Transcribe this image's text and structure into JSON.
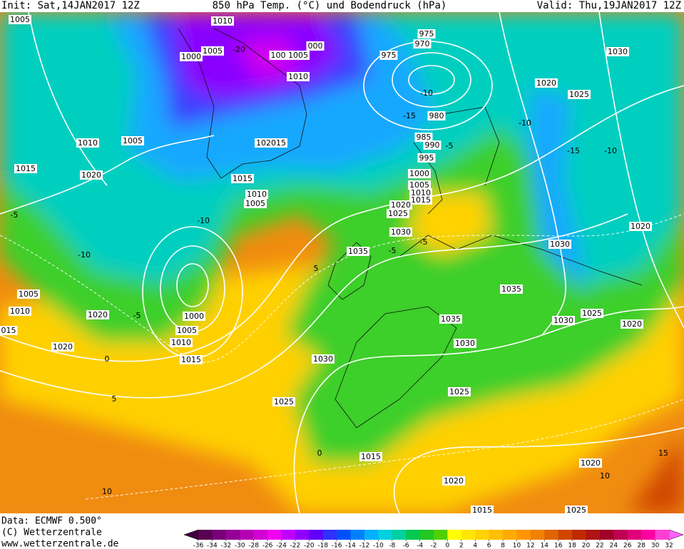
{
  "header": {
    "init": "Init: Sat,14JAN2017 12Z",
    "title": "850 hPa Temp. (°C) und Bodendruck (hPa)",
    "valid": "Valid: Thu,19JAN2017 12Z"
  },
  "map": {
    "isobar_labels": [
      "1005",
      "1010",
      "1005",
      "1000",
      "100",
      "1005",
      "000",
      "975",
      "975",
      "970",
      "1030",
      "1010",
      "1020",
      "1025",
      "980",
      "985",
      "990",
      "995",
      "102015",
      "1010",
      "1005",
      "1015",
      "1020",
      "1000",
      "1005",
      "1010",
      "1015",
      "1015",
      "1010",
      "1005",
      "1020",
      "1025",
      "1030",
      "1020",
      "1030",
      "1035",
      "1005",
      "1010",
      "015",
      "1020",
      "1000",
      "1005",
      "1010",
      "1015",
      "1020",
      "1035",
      "1025",
      "1035",
      "1030",
      "1020",
      "1030",
      "1030",
      "1025",
      "1025",
      "1015",
      "1020",
      "1020",
      "1015",
      "1025"
    ],
    "temperature_labels": [
      "-10",
      "-15",
      "-10",
      "-5",
      "-15",
      "-10",
      "-5",
      "-10",
      "-10",
      "-5",
      "0",
      "5",
      "-5",
      "5",
      "0",
      "10",
      "15",
      "10",
      "-5",
      "-20"
    ]
  },
  "footer": {
    "data": "Data: ECMWF  0.500°",
    "copyright": "(C) Wetterzentrale",
    "url": "www.wetterzentrale.de"
  },
  "colorbar": {
    "ticks": [
      -36,
      -34,
      -32,
      -30,
      -28,
      -26,
      -24,
      -22,
      -20,
      -18,
      -16,
      -14,
      -12,
      -10,
      -8,
      -6,
      -4,
      -2,
      0,
      2,
      4,
      6,
      8,
      10,
      12,
      14,
      16,
      18,
      20,
      22,
      24,
      26,
      28,
      30,
      32
    ],
    "colors": [
      "#5a0050",
      "#780078",
      "#960096",
      "#b400b4",
      "#d200d2",
      "#f000f0",
      "#c000ff",
      "#9000ff",
      "#6000ff",
      "#3030ff",
      "#0050ff",
      "#0080ff",
      "#00b0ff",
      "#00d0e0",
      "#00d0a0",
      "#00c850",
      "#20c820",
      "#50d000",
      "#ffff00",
      "#ffe600",
      "#ffd200",
      "#ffbe00",
      "#ffaa00",
      "#ff9600",
      "#f08200",
      "#e06400",
      "#d04600",
      "#c02800",
      "#b01414",
      "#a00028",
      "#c00050",
      "#e00078",
      "#ff00a0",
      "#ff40d0"
    ],
    "under_color": "#400040",
    "over_color": "#ff60ff"
  }
}
